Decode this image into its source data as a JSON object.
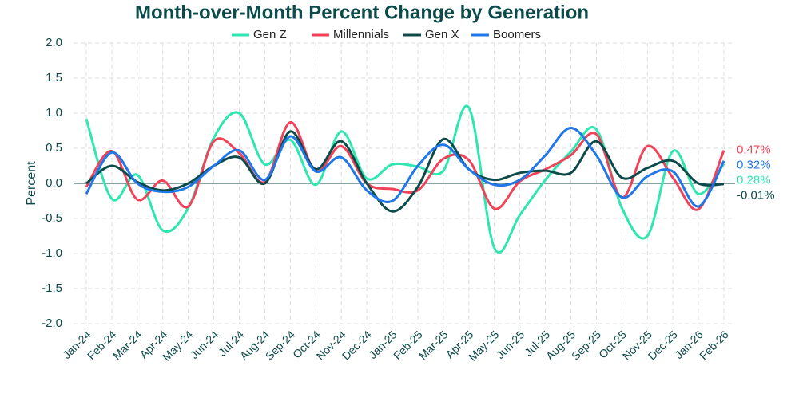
{
  "chart_data": {
    "type": "line",
    "title": "Month-over-Month Percent Change by Generation",
    "y_label": "Percent",
    "categories": [
      "Jan-24",
      "Feb-24",
      "Mar-24",
      "Apr-24",
      "May-24",
      "Jun-24",
      "Jul-24",
      "Aug-24",
      "Sep-24",
      "Oct-24",
      "Nov-24",
      "Dec-24",
      "Jan-25",
      "Feb-25",
      "Mar-25",
      "Apr-25",
      "May-25",
      "Jun-25",
      "Jul-25",
      "Aug-25",
      "Sep-25",
      "Oct-25",
      "Nov-25",
      "Dec-25",
      "Jan-26",
      "Feb-26"
    ],
    "ylim": [
      -2.0,
      2.0
    ],
    "yticks": [
      {
        "value": -2.0,
        "label": "-2.0"
      },
      {
        "value": -1.5,
        "label": "-1.5"
      },
      {
        "value": -1.0,
        "label": "-1.0"
      },
      {
        "value": -0.5,
        "label": "-0.5"
      },
      {
        "value": 0,
        "label": "0.0"
      },
      {
        "value": 0.5,
        "label": "0.5"
      },
      {
        "value": 1.0,
        "label": "1.0"
      },
      {
        "value": 1.5,
        "label": "1.5"
      },
      {
        "value": 2.0,
        "label": "2.0"
      }
    ],
    "grid": true,
    "legend": "top",
    "series": [
      {
        "name": "Gen Z",
        "color": "#2ee6b0",
        "values": [
          0.92,
          -0.22,
          0.12,
          -0.67,
          -0.35,
          0.65,
          1.0,
          0.27,
          0.62,
          -0.02,
          0.74,
          0.07,
          0.27,
          0.24,
          0.18,
          1.08,
          -0.92,
          -0.45,
          0.05,
          0.45,
          0.77,
          -0.35,
          -0.75,
          0.46,
          -0.15,
          0.28
        ],
        "value_labels": [
          null,
          null,
          null,
          null,
          null,
          null,
          null,
          null,
          null,
          null,
          null,
          null,
          null,
          null,
          null,
          null,
          null,
          null,
          null,
          null,
          null,
          null,
          null,
          null,
          null,
          "0.28%"
        ]
      },
      {
        "name": "Millennials",
        "color": "#f0435a",
        "values": [
          -0.05,
          0.46,
          -0.23,
          0.04,
          -0.33,
          0.6,
          0.43,
          0.02,
          0.87,
          0.17,
          0.53,
          0.0,
          -0.08,
          -0.1,
          0.35,
          0.33,
          -0.36,
          0.03,
          0.2,
          0.4,
          0.7,
          -0.2,
          0.53,
          0.08,
          -0.37,
          0.47
        ],
        "value_labels": [
          null,
          null,
          null,
          null,
          null,
          null,
          null,
          null,
          null,
          null,
          null,
          null,
          null,
          null,
          null,
          null,
          null,
          null,
          null,
          null,
          null,
          null,
          null,
          null,
          null,
          "0.47%"
        ]
      },
      {
        "name": "Gen X",
        "color": "#0d4a4a",
        "values": [
          0.0,
          0.25,
          0.02,
          -0.1,
          0.0,
          0.25,
          0.37,
          0.0,
          0.74,
          0.2,
          0.6,
          0.0,
          -0.4,
          -0.05,
          0.63,
          0.2,
          0.05,
          0.15,
          0.18,
          0.15,
          0.6,
          0.08,
          0.22,
          0.32,
          0.0,
          -0.01
        ],
        "value_labels": [
          null,
          null,
          null,
          null,
          null,
          null,
          null,
          null,
          null,
          null,
          null,
          null,
          null,
          null,
          null,
          null,
          null,
          null,
          null,
          null,
          null,
          null,
          null,
          null,
          null,
          "-0.01%"
        ]
      },
      {
        "name": "Boomers",
        "color": "#1f77e8",
        "values": [
          -0.15,
          0.44,
          0.0,
          -0.12,
          -0.05,
          0.25,
          0.47,
          0.05,
          0.67,
          0.17,
          0.37,
          -0.1,
          -0.25,
          0.25,
          0.55,
          0.2,
          -0.02,
          0.05,
          0.4,
          0.79,
          0.4,
          -0.2,
          0.1,
          0.17,
          -0.33,
          0.32
        ],
        "value_labels": [
          null,
          null,
          null,
          null,
          null,
          null,
          null,
          null,
          null,
          null,
          null,
          null,
          null,
          null,
          null,
          null,
          null,
          null,
          null,
          null,
          null,
          null,
          null,
          null,
          null,
          "0.32%"
        ]
      }
    ]
  }
}
